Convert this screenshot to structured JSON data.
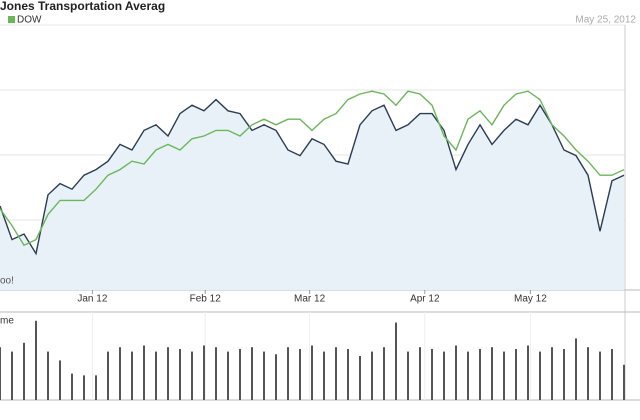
{
  "chart_data": {
    "type": "line",
    "title": "Jones Transportation Averag",
    "date": "May 25, 2012",
    "source": "oo!",
    "volume_label": "me",
    "xlim": [
      0,
      52
    ],
    "xticks": [
      {
        "value": 7.7,
        "label": "Jan 12"
      },
      {
        "value": 17.1,
        "label": "Feb 12"
      },
      {
        "value": 25.8,
        "label": "Mar 12"
      },
      {
        "value": 35.4,
        "label": "Apr 12"
      },
      {
        "value": 44.2,
        "label": "May 12"
      }
    ],
    "ylim": [
      0,
      100
    ],
    "series": [
      {
        "color": "#2b3d52",
        "fill": "#e8f1f8",
        "values": [
          30,
          18,
          20,
          13,
          34,
          38,
          36,
          41,
          43,
          46,
          52,
          50,
          57,
          59,
          55,
          63,
          66,
          64,
          68,
          64,
          63,
          57,
          59,
          57,
          50,
          48,
          54,
          52,
          46,
          45,
          59,
          64,
          66,
          57,
          59,
          63,
          63,
          57,
          43,
          52,
          59,
          52,
          57,
          61,
          59,
          66,
          59,
          50,
          48,
          41,
          21,
          39,
          41
        ]
      },
      {
        "name": "DOW",
        "color": "#6cb65a",
        "values": [
          29,
          23,
          16,
          18,
          27,
          32,
          32,
          32,
          36,
          41,
          43,
          46,
          45,
          50,
          52,
          50,
          54,
          55,
          57,
          57,
          55,
          59,
          61,
          59,
          61,
          61,
          57,
          61,
          63,
          68,
          70,
          71,
          70,
          66,
          71,
          70,
          66,
          55,
          50,
          61,
          64,
          59,
          66,
          70,
          71,
          68,
          59,
          55,
          50,
          46,
          41,
          41,
          43
        ]
      }
    ],
    "volume": {
      "color": "#555",
      "ylim": [
        0,
        100
      ],
      "values": [
        60,
        55,
        65,
        90,
        55,
        45,
        30,
        28,
        28,
        55,
        60,
        55,
        62,
        55,
        60,
        58,
        55,
        62,
        60,
        55,
        58,
        60,
        55,
        52,
        60,
        58,
        62,
        55,
        60,
        58,
        50,
        55,
        60,
        88,
        55,
        60,
        58,
        55,
        62,
        55,
        58,
        60,
        55,
        58,
        62,
        55,
        60,
        58,
        70,
        60,
        55,
        58,
        40
      ]
    }
  }
}
